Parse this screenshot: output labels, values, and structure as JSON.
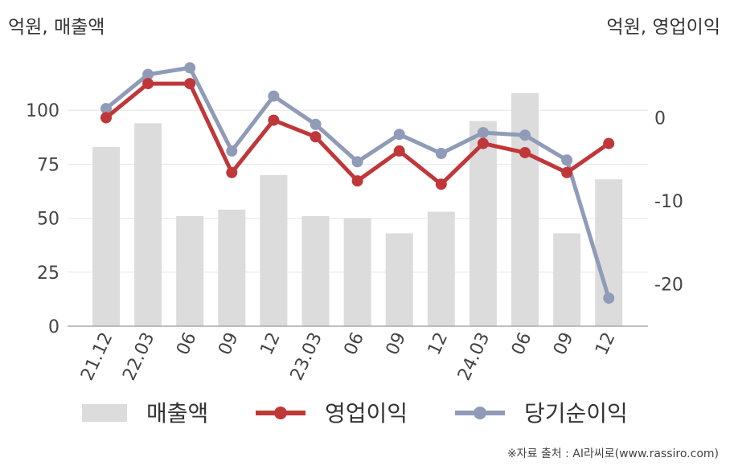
{
  "labels": {
    "left_unit": "억원, 매출액",
    "right_unit": "억원, 영업이익",
    "source": "※자료 출처 : AI라씨로(www.rassiro.com)"
  },
  "chart_data": {
    "type": "bar",
    "categories": [
      "21.12",
      "22.03",
      "06",
      "09",
      "12",
      "23.03",
      "06",
      "09",
      "12",
      "24.03",
      "06",
      "09",
      "12"
    ],
    "left_axis": {
      "ticks": [
        0,
        25,
        50,
        75,
        100
      ],
      "ylim": [
        0,
        125
      ]
    },
    "right_axis": {
      "ticks": [
        0,
        -10,
        -20
      ],
      "ylim": [
        -25,
        8
      ]
    },
    "grid": true,
    "legend_position": "bottom",
    "series": [
      {
        "name": "매출액",
        "type": "bar",
        "axis": "left",
        "color": "#dcdcdc",
        "values": [
          83,
          94,
          51,
          54,
          70,
          51,
          50,
          43,
          53,
          95,
          108,
          43,
          68
        ]
      },
      {
        "name": "영업이익",
        "type": "line",
        "axis": "right",
        "color": "#c0373a",
        "values": [
          0,
          4.1,
          4.1,
          -6.6,
          -0.3,
          -2.3,
          -7.6,
          -4.0,
          -8.0,
          -3.1,
          -4.2,
          -6.6,
          -3.1
        ]
      },
      {
        "name": "당기순이익",
        "type": "line",
        "axis": "right",
        "color": "#8f9bb7",
        "values": [
          1.1,
          5.2,
          6.0,
          -4.0,
          2.6,
          -0.8,
          -5.3,
          -2.0,
          -4.3,
          -1.8,
          -2.1,
          -5.1,
          -21.7
        ]
      }
    ]
  }
}
